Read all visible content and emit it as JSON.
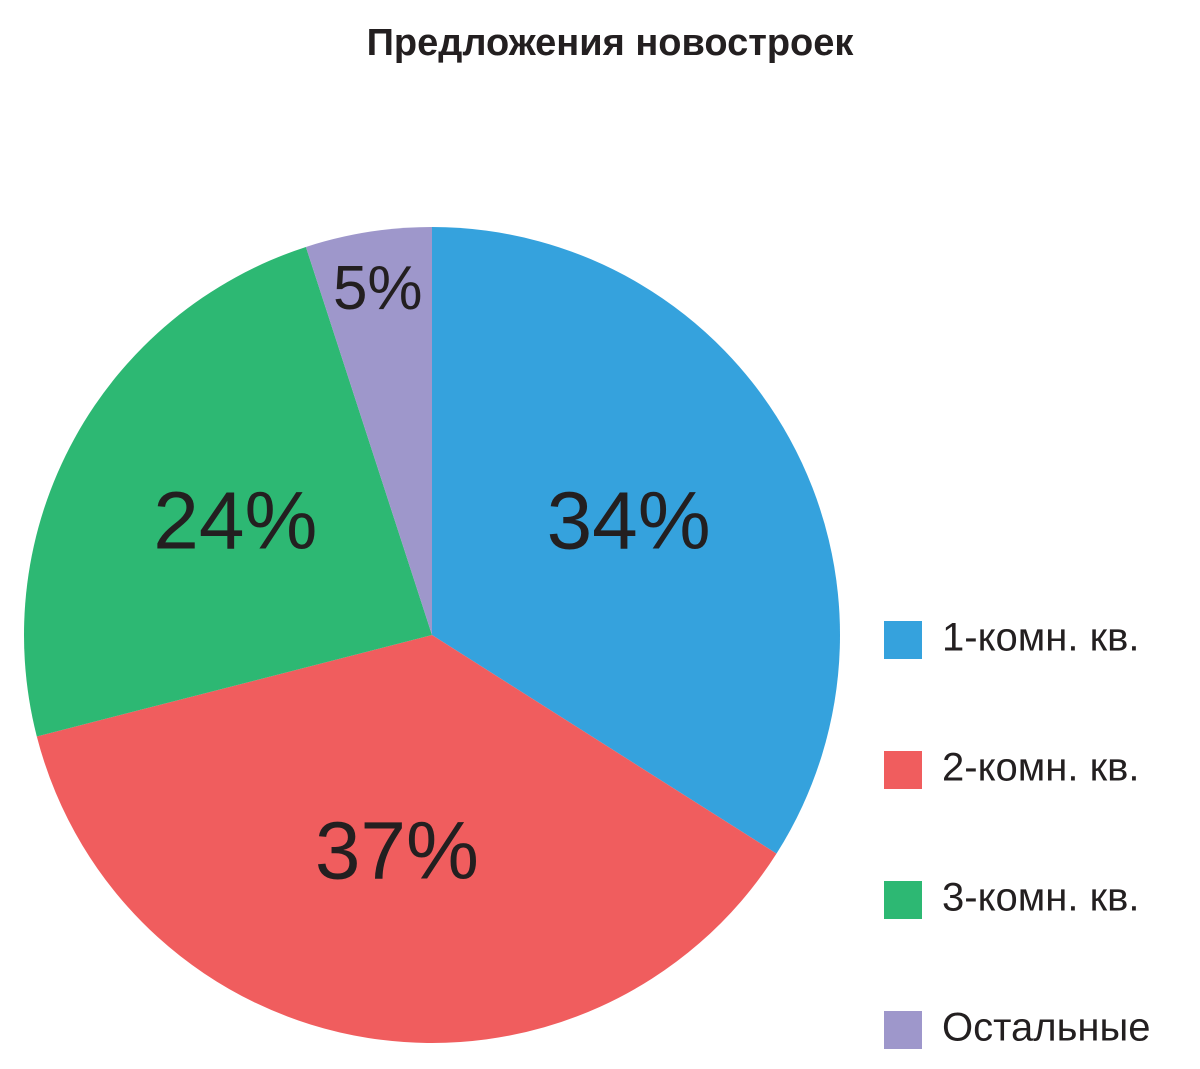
{
  "chart_data": {
    "type": "pie",
    "title": "Предложения новостроек",
    "categories": [
      "1-комн. кв.",
      "2-комн. кв.",
      "3-комн. кв.",
      "Остальные"
    ],
    "values": [
      34,
      37,
      24,
      5
    ],
    "value_labels": [
      "34%",
      "37%",
      "24%",
      "5%"
    ],
    "colors": [
      "#35a2dd",
      "#f05d5e",
      "#2db873",
      "#9e97cb"
    ],
    "legend": "right"
  }
}
